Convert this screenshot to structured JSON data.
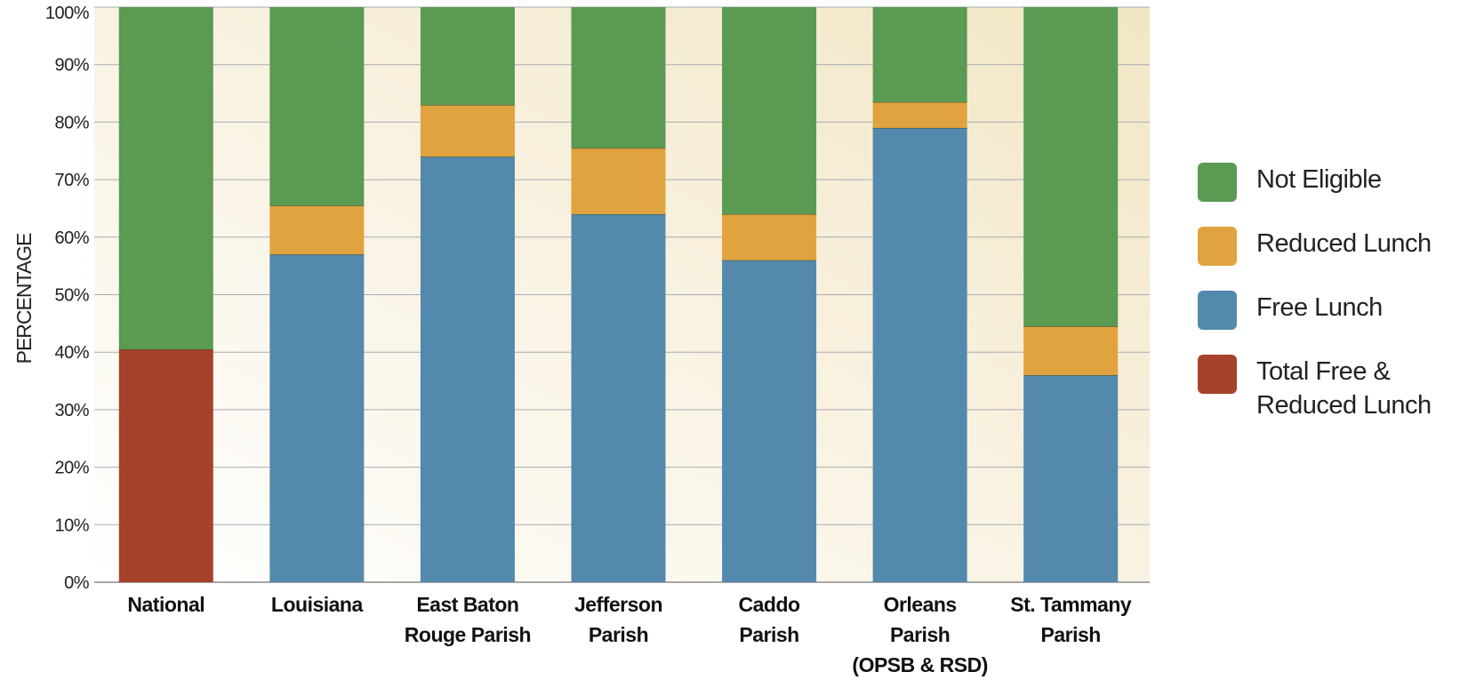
{
  "chart_data": {
    "type": "bar",
    "stacked": true,
    "title": "",
    "xlabel": "",
    "ylabel": "PERCENTAGE",
    "ylim": [
      0,
      100
    ],
    "yticks": [
      "0%",
      "10%",
      "20%",
      "30%",
      "40%",
      "50%",
      "60%",
      "70%",
      "80%",
      "90%",
      "100%"
    ],
    "categories": [
      [
        "National"
      ],
      [
        "Louisiana"
      ],
      [
        "East Baton",
        "Rouge Parish"
      ],
      [
        "Jefferson",
        "Parish"
      ],
      [
        "Caddo",
        "Parish"
      ],
      [
        "Orleans",
        "Parish",
        "(OPSB & RSD)"
      ],
      [
        "St. Tammany",
        "Parish"
      ]
    ],
    "series": [
      {
        "name": "Total Free & Reduced Lunch",
        "color": "#a64229",
        "values": [
          40.5,
          0,
          0,
          0,
          0,
          0,
          0
        ]
      },
      {
        "name": "Free Lunch",
        "color": "#5389ad",
        "values": [
          0,
          57,
          74,
          64,
          56,
          79,
          36
        ]
      },
      {
        "name": "Reduced Lunch",
        "color": "#e0a33f",
        "values": [
          0,
          8.5,
          9,
          11.5,
          8,
          4.5,
          8.5
        ]
      },
      {
        "name": "Not Eligible",
        "color": "#5a9a53",
        "values": [
          59.5,
          34.5,
          17,
          24.5,
          36,
          16.5,
          55.5
        ]
      }
    ],
    "grid": true,
    "legend_position": "right"
  },
  "legend": [
    {
      "label": "Not Eligible",
      "color": "#5a9a53"
    },
    {
      "label": "Reduced Lunch",
      "color": "#e0a33f"
    },
    {
      "label": "Free Lunch",
      "color": "#5389ad"
    },
    {
      "label": "Total Free &\nReduced Lunch",
      "color": "#a64229"
    }
  ]
}
